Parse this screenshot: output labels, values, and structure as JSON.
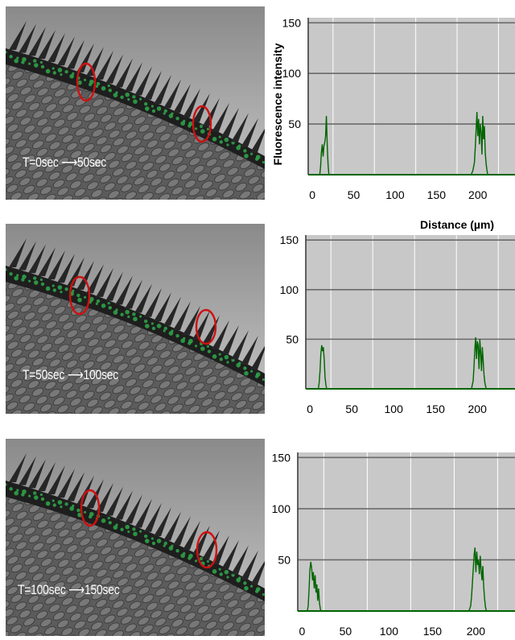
{
  "chart_data": [
    {
      "type": "line",
      "time_label": "T=0sec ⟶50sec",
      "ylabel": "Fluorescence intensity",
      "xlabel": "Distance (µm)",
      "x_ticks": [
        0,
        50,
        100,
        150,
        200
      ],
      "y_ticks": [
        50,
        100,
        150
      ],
      "xlim": [
        -5,
        245
      ],
      "ylim": [
        0,
        155
      ],
      "grid": true,
      "line_color": "#006400",
      "series": [
        {
          "x": [
            0,
            9,
            10,
            11,
            12,
            13,
            14,
            15,
            16,
            17,
            18,
            19,
            20,
            185,
            192,
            194,
            196,
            197,
            198,
            199,
            200,
            201,
            202,
            203,
            204,
            205,
            206,
            207,
            208,
            209,
            210,
            211,
            212,
            240
          ],
          "y": [
            0,
            0,
            8,
            22,
            30,
            18,
            28,
            32,
            38,
            58,
            30,
            10,
            0,
            0,
            0,
            4,
            12,
            28,
            45,
            62,
            38,
            55,
            30,
            50,
            42,
            20,
            58,
            35,
            48,
            22,
            12,
            5,
            0,
            0
          ]
        }
      ]
    },
    {
      "type": "line",
      "time_label": "T=50sec ⟶100sec",
      "x_ticks": [
        0,
        50,
        100,
        150,
        200
      ],
      "y_ticks": [
        50,
        100,
        150
      ],
      "xlim": [
        -5,
        245
      ],
      "ylim": [
        0,
        155
      ],
      "grid": true,
      "line_color": "#006400",
      "series": [
        {
          "x": [
            0,
            10,
            11,
            12,
            13,
            14,
            15,
            16,
            17,
            18,
            19,
            20,
            185,
            193,
            195,
            196,
            197,
            198,
            199,
            200,
            201,
            202,
            203,
            204,
            205,
            206,
            207,
            208,
            209,
            210,
            211,
            240
          ],
          "y": [
            0,
            0,
            6,
            18,
            35,
            44,
            38,
            42,
            30,
            12,
            4,
            0,
            0,
            0,
            8,
            22,
            40,
            52,
            30,
            48,
            44,
            20,
            50,
            36,
            18,
            42,
            28,
            14,
            6,
            2,
            0,
            0
          ]
        }
      ]
    },
    {
      "type": "line",
      "time_label": "T=100sec ⟶150sec",
      "x_ticks": [
        0,
        50,
        100,
        150,
        200
      ],
      "y_ticks": [
        50,
        100,
        150
      ],
      "xlim": [
        -5,
        245
      ],
      "ylim": [
        0,
        155
      ],
      "grid": true,
      "line_color": "#006400",
      "series": [
        {
          "x": [
            0,
            6,
            7,
            8,
            9,
            10,
            11,
            12,
            13,
            14,
            15,
            16,
            17,
            18,
            19,
            20,
            21,
            22,
            185,
            192,
            194,
            195,
            196,
            197,
            198,
            199,
            200,
            201,
            202,
            203,
            204,
            205,
            206,
            207,
            208,
            209,
            210,
            211,
            212,
            240
          ],
          "y": [
            0,
            0,
            5,
            20,
            40,
            48,
            42,
            30,
            38,
            22,
            35,
            18,
            26,
            10,
            22,
            8,
            2,
            0,
            0,
            0,
            5,
            14,
            28,
            42,
            55,
            62,
            38,
            58,
            45,
            50,
            36,
            54,
            40,
            30,
            44,
            24,
            12,
            4,
            0,
            0
          ]
        }
      ]
    }
  ]
}
